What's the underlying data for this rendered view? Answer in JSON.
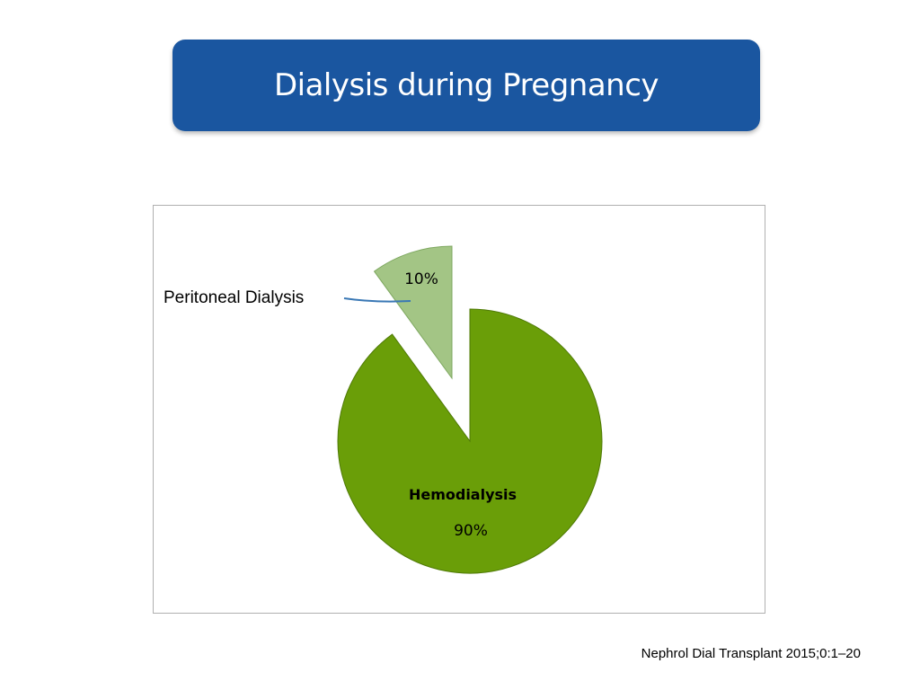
{
  "slide": {
    "title": "Dialysis during Pregnancy",
    "citation": "Nephrol Dial Transplant 2015;0:1–20"
  },
  "chart_data": {
    "type": "pie",
    "categories": [
      "Peritoneal Dialysis",
      "Hemodialysis"
    ],
    "values": [
      10,
      90
    ],
    "value_labels": [
      "10%",
      "90%"
    ],
    "colors": [
      "#a3c585",
      "#6a9e08"
    ],
    "exploded": true,
    "legend": "none",
    "labels_placement": "Peritoneal Dialysis label outside with leader line; Hemodialysis label inside slice"
  }
}
